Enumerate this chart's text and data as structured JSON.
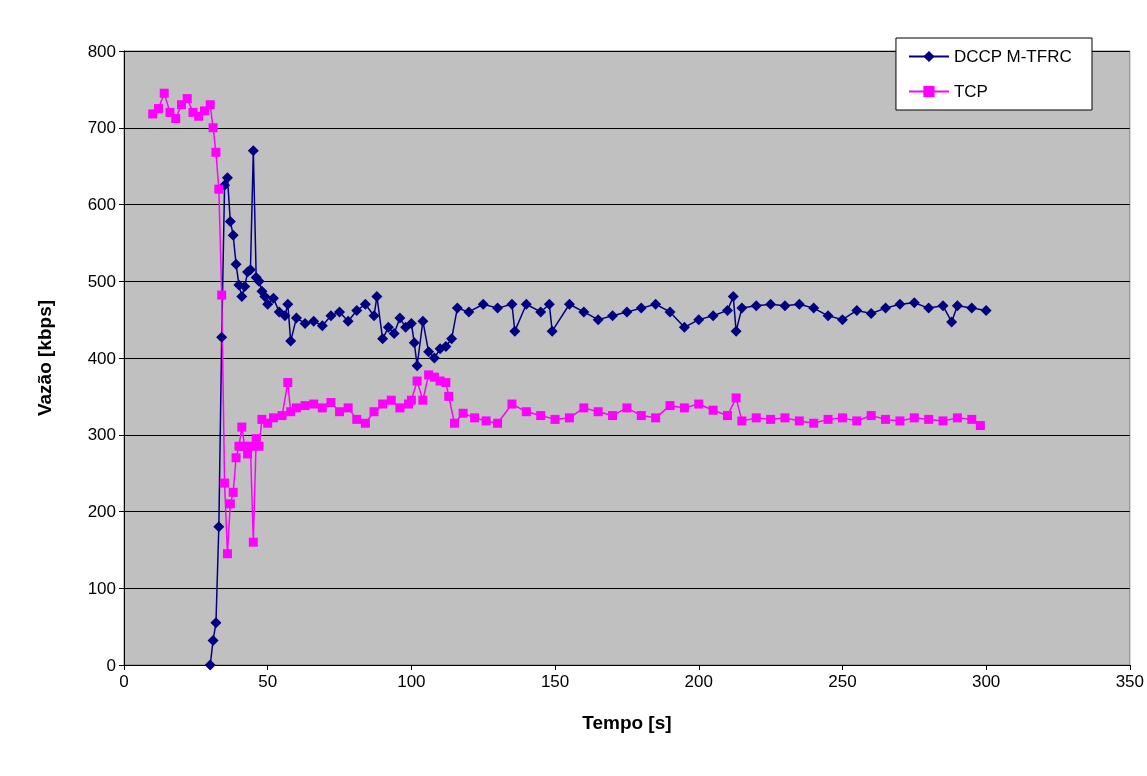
{
  "chart_data": {
    "type": "line",
    "xlabel": "Tempo [s]",
    "ylabel": "Vazão [kbps]",
    "xlim": [
      0,
      350
    ],
    "xticks": [
      0,
      50,
      100,
      150,
      200,
      250,
      300,
      350
    ],
    "ylim": [
      0,
      800
    ],
    "yticks": [
      0,
      100,
      200,
      300,
      400,
      500,
      600,
      700,
      800
    ],
    "grid": "y",
    "legend": "top right",
    "series": [
      {
        "name": "DCCP M-TFRC",
        "color": "#000080",
        "marker": "diamond",
        "x": [
          30,
          31,
          32,
          33,
          34,
          35,
          36,
          37,
          38,
          39,
          40,
          41,
          42,
          43,
          44,
          45,
          46,
          47,
          48,
          49,
          50,
          52,
          54,
          56,
          57,
          58,
          60,
          63,
          66,
          69,
          72,
          75,
          78,
          81,
          84,
          87,
          88,
          90,
          92,
          94,
          96,
          98,
          100,
          101,
          102,
          104,
          106,
          108,
          110,
          112,
          114,
          116,
          120,
          125,
          130,
          135,
          136,
          140,
          145,
          148,
          149,
          155,
          160,
          165,
          170,
          175,
          180,
          185,
          190,
          195,
          200,
          205,
          210,
          212,
          213,
          215,
          220,
          225,
          230,
          235,
          240,
          245,
          250,
          255,
          260,
          265,
          270,
          275,
          280,
          285,
          288,
          290,
          295,
          300
        ],
        "values": [
          0,
          32,
          55,
          180,
          427,
          625,
          635,
          578,
          560,
          522,
          495,
          480,
          493,
          512,
          515,
          670,
          505,
          500,
          487,
          480,
          470,
          478,
          460,
          455,
          470,
          422,
          452,
          445,
          448,
          442,
          455,
          460,
          448,
          462,
          470,
          455,
          480,
          425,
          440,
          432,
          452,
          440,
          445,
          420,
          390,
          448,
          408,
          400,
          412,
          415,
          425,
          465,
          460,
          470,
          465,
          470,
          435,
          470,
          460,
          470,
          435,
          470,
          460,
          450,
          455,
          460,
          465,
          470,
          460,
          440,
          450,
          455,
          462,
          480,
          435,
          465,
          468,
          470,
          468,
          470,
          465,
          455,
          450,
          462,
          458,
          465,
          470,
          472,
          465,
          468,
          447,
          468,
          465,
          462
        ]
      },
      {
        "name": "TCP",
        "color": "#ff00ff",
        "marker": "square",
        "x": [
          10,
          12,
          14,
          16,
          18,
          20,
          22,
          24,
          26,
          28,
          30,
          31,
          32,
          33,
          34,
          35,
          36,
          37,
          38,
          39,
          40,
          41,
          42,
          43,
          44,
          45,
          46,
          47,
          48,
          50,
          52,
          55,
          57,
          58,
          60,
          63,
          66,
          69,
          72,
          75,
          78,
          81,
          84,
          87,
          90,
          93,
          96,
          99,
          100,
          102,
          104,
          106,
          108,
          110,
          112,
          113,
          115,
          118,
          122,
          126,
          130,
          135,
          140,
          145,
          150,
          155,
          160,
          165,
          170,
          175,
          180,
          185,
          190,
          195,
          200,
          205,
          210,
          213,
          215,
          220,
          225,
          230,
          235,
          240,
          245,
          250,
          255,
          260,
          265,
          270,
          275,
          280,
          285,
          290,
          295,
          298
        ],
        "values": [
          718,
          725,
          745,
          720,
          712,
          730,
          738,
          720,
          715,
          722,
          730,
          700,
          668,
          620,
          482,
          237,
          145,
          210,
          225,
          270,
          285,
          310,
          285,
          275,
          285,
          160,
          295,
          285,
          320,
          315,
          322,
          325,
          368,
          330,
          335,
          338,
          340,
          335,
          342,
          330,
          335,
          320,
          315,
          330,
          340,
          345,
          335,
          340,
          345,
          370,
          345,
          378,
          375,
          370,
          368,
          350,
          315,
          328,
          322,
          318,
          315,
          340,
          330,
          325,
          320,
          322,
          335,
          330,
          325,
          335,
          325,
          322,
          338,
          335,
          340,
          332,
          325,
          348,
          318,
          322,
          320,
          322,
          318,
          315,
          320,
          322,
          318,
          325,
          320,
          318,
          322,
          320,
          318,
          322,
          320,
          312
        ]
      }
    ]
  }
}
